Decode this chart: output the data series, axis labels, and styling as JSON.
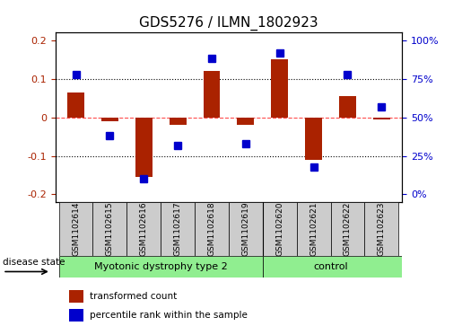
{
  "title": "GDS5276 / ILMN_1802923",
  "samples": [
    "GSM1102614",
    "GSM1102615",
    "GSM1102616",
    "GSM1102617",
    "GSM1102618",
    "GSM1102619",
    "GSM1102620",
    "GSM1102621",
    "GSM1102622",
    "GSM1102623"
  ],
  "red_values": [
    0.065,
    -0.01,
    -0.155,
    -0.02,
    0.12,
    -0.02,
    0.15,
    -0.11,
    0.055,
    -0.005
  ],
  "blue_values": [
    0.78,
    0.38,
    0.1,
    0.32,
    0.88,
    0.33,
    0.92,
    0.18,
    0.78,
    0.57
  ],
  "group1_label": "Myotonic dystrophy type 2",
  "group2_label": "control",
  "group1_count": 6,
  "group2_count": 4,
  "disease_state_label": "disease state",
  "ylim": [
    -0.22,
    0.22
  ],
  "yticks_left": [
    -0.2,
    -0.1,
    0.0,
    0.1,
    0.2
  ],
  "yticks_right": [
    0.0,
    0.25,
    0.5,
    0.75,
    1.0
  ],
  "ytick_labels_left": [
    "-0.2",
    "-0.1",
    "0",
    "0.1",
    "0.2"
  ],
  "ytick_labels_right": [
    "0%",
    "25%",
    "50%",
    "75%",
    "100%"
  ],
  "red_color": "#AA2200",
  "blue_color": "#0000CC",
  "green_color": "#90EE90",
  "gray_color": "#CCCCCC",
  "legend_red": "transformed count",
  "legend_blue": "percentile rank within the sample",
  "bar_width": 0.5,
  "marker_size": 6
}
